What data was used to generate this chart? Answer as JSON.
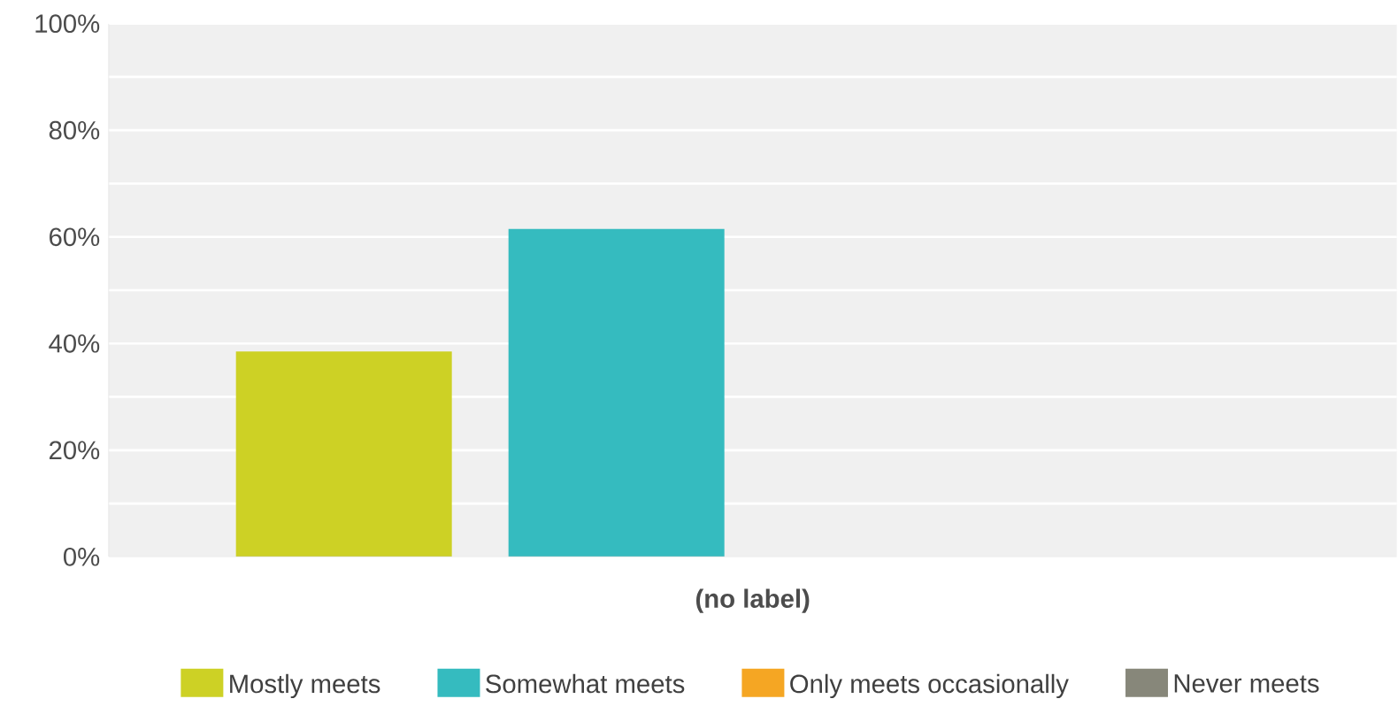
{
  "chart_data": {
    "type": "bar",
    "categories": [
      "(no label)"
    ],
    "series": [
      {
        "name": "Mostly meets",
        "color": "#cdd125",
        "values": [
          38.5
        ]
      },
      {
        "name": "Somewhat meets",
        "color": "#35bbbf",
        "values": [
          61.5
        ]
      },
      {
        "name": "Only meets occasionally",
        "color": "#f5a623",
        "values": [
          0
        ]
      },
      {
        "name": "Never meets",
        "color": "#87877a",
        "values": [
          0
        ]
      }
    ],
    "ylim": [
      0,
      100
    ],
    "yticks": [
      {
        "value": 0,
        "label": "0%"
      },
      {
        "value": 10,
        "label": null
      },
      {
        "value": 20,
        "label": "20%"
      },
      {
        "value": 30,
        "label": null
      },
      {
        "value": 40,
        "label": "40%"
      },
      {
        "value": 50,
        "label": null
      },
      {
        "value": 60,
        "label": "60%"
      },
      {
        "value": 70,
        "label": null
      },
      {
        "value": 80,
        "label": "80%"
      },
      {
        "value": 90,
        "label": null
      },
      {
        "value": 100,
        "label": "100%"
      }
    ],
    "grid": "y",
    "legend": "bottom"
  }
}
